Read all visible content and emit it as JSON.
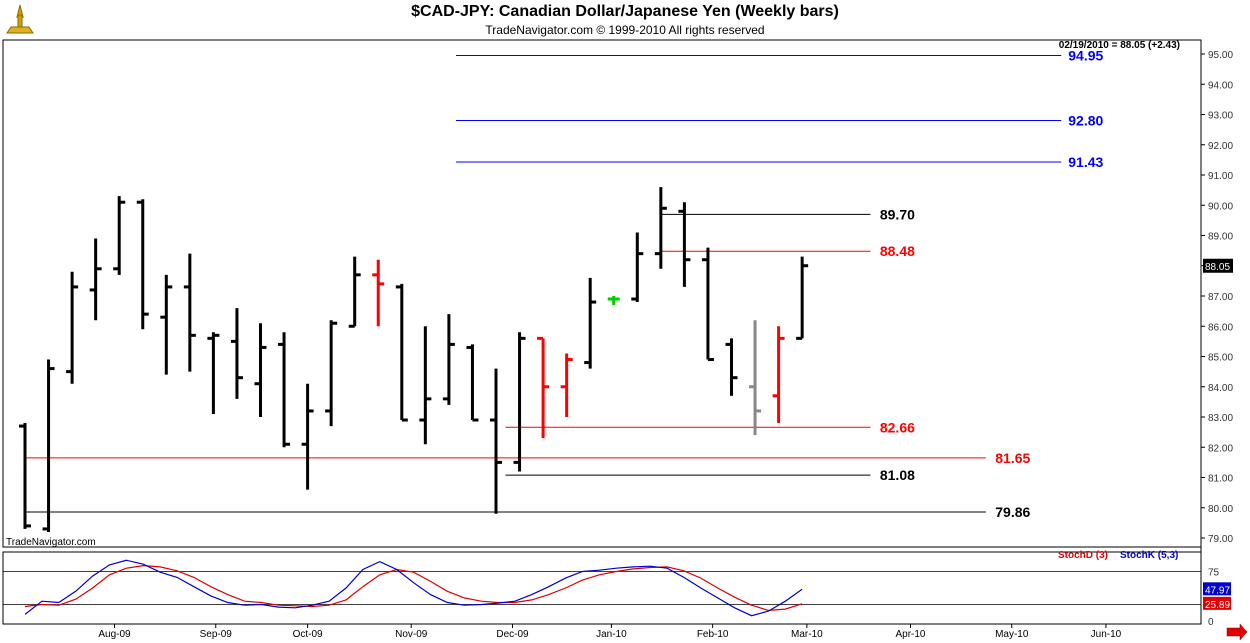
{
  "header": {
    "title": "$CAD-JPY:  Canadian Dollar/Japanese Yen  (Weekly bars)",
    "copyright": "TradeNavigator.com © 1999-2010 All rights reserved"
  },
  "info": {
    "last_quote": "02/19/2010 = 88.05 (+2.43)",
    "watermark": "TradeNavigator.com",
    "price_tag": "88.05"
  },
  "colors": {
    "blue": "#0000ff",
    "red": "#ff0000",
    "black": "#000000",
    "green": "#00cc00",
    "gray": "#888888",
    "stochD": "#e00000",
    "stochK": "#0000cc"
  },
  "chart_data": {
    "type": "ohlc",
    "yaxis": {
      "min": 79.0,
      "max": 95.0,
      "ticks": [
        "79.00",
        "80.00",
        "81.00",
        "82.00",
        "83.00",
        "84.00",
        "85.00",
        "86.00",
        "87.00",
        "88.00",
        "89.00",
        "90.00",
        "91.00",
        "92.00",
        "93.00",
        "94.00",
        "95.00"
      ]
    },
    "xaxis": {
      "labels": [
        {
          "label": "Aug-09",
          "week": 3.8
        },
        {
          "label": "Sep-09",
          "week": 8.1
        },
        {
          "label": "Oct-09",
          "week": 12.0
        },
        {
          "label": "Nov-09",
          "week": 16.4
        },
        {
          "label": "Dec-09",
          "week": 20.7
        },
        {
          "label": "Jan-10",
          "week": 24.9
        },
        {
          "label": "Feb-10",
          "week": 29.2
        },
        {
          "label": "Mar-10",
          "week": 33.2
        },
        {
          "label": "Apr-10",
          "week": 37.6
        },
        {
          "label": "May-10",
          "week": 41.9
        },
        {
          "label": "Jun-10",
          "week": 45.9
        }
      ]
    },
    "bars": [
      {
        "o": 82.7,
        "h": 82.8,
        "l": 79.3,
        "c": 79.4,
        "color": "black"
      },
      {
        "o": 79.3,
        "h": 84.9,
        "l": 79.2,
        "c": 84.6,
        "color": "black"
      },
      {
        "o": 84.5,
        "h": 87.8,
        "l": 84.1,
        "c": 87.3,
        "color": "black"
      },
      {
        "o": 87.2,
        "h": 88.9,
        "l": 86.2,
        "c": 87.9,
        "color": "black"
      },
      {
        "o": 87.9,
        "h": 90.3,
        "l": 87.7,
        "c": 90.1,
        "color": "black"
      },
      {
        "o": 90.1,
        "h": 90.2,
        "l": 85.9,
        "c": 86.4,
        "color": "black"
      },
      {
        "o": 86.3,
        "h": 87.7,
        "l": 84.4,
        "c": 87.3,
        "color": "black"
      },
      {
        "o": 87.3,
        "h": 88.4,
        "l": 84.5,
        "c": 85.7,
        "color": "black"
      },
      {
        "o": 85.6,
        "h": 85.8,
        "l": 83.1,
        "c": 85.7,
        "color": "black"
      },
      {
        "o": 85.5,
        "h": 86.6,
        "l": 83.6,
        "c": 84.3,
        "color": "black"
      },
      {
        "o": 84.1,
        "h": 86.1,
        "l": 83.0,
        "c": 85.3,
        "color": "black"
      },
      {
        "o": 85.4,
        "h": 85.8,
        "l": 82.0,
        "c": 82.1,
        "color": "black"
      },
      {
        "o": 82.1,
        "h": 84.1,
        "l": 80.6,
        "c": 83.2,
        "color": "black"
      },
      {
        "o": 83.2,
        "h": 86.2,
        "l": 82.7,
        "c": 86.1,
        "color": "black"
      },
      {
        "o": 86.0,
        "h": 88.3,
        "l": 86.0,
        "c": 87.7,
        "color": "black"
      },
      {
        "o": 87.7,
        "h": 88.2,
        "l": 86.0,
        "c": 87.4,
        "color": "red"
      },
      {
        "o": 87.3,
        "h": 87.4,
        "l": 82.9,
        "c": 82.9,
        "color": "black"
      },
      {
        "o": 82.9,
        "h": 86.0,
        "l": 82.1,
        "c": 83.6,
        "color": "black"
      },
      {
        "o": 83.6,
        "h": 86.4,
        "l": 83.4,
        "c": 85.4,
        "color": "black"
      },
      {
        "o": 85.3,
        "h": 85.4,
        "l": 82.9,
        "c": 82.9,
        "color": "black"
      },
      {
        "o": 82.9,
        "h": 84.6,
        "l": 79.8,
        "c": 81.5,
        "color": "black"
      },
      {
        "o": 81.5,
        "h": 85.8,
        "l": 81.2,
        "c": 85.6,
        "color": "black"
      },
      {
        "o": 85.6,
        "h": 85.6,
        "l": 82.3,
        "c": 84.0,
        "color": "red"
      },
      {
        "o": 84.0,
        "h": 85.1,
        "l": 83.0,
        "c": 84.9,
        "color": "red"
      },
      {
        "o": 84.8,
        "h": 87.6,
        "l": 84.6,
        "c": 86.8,
        "color": "black"
      },
      {
        "o": 86.9,
        "h": 87.0,
        "l": 86.7,
        "c": 86.9,
        "color": "green"
      },
      {
        "o": 86.9,
        "h": 89.1,
        "l": 86.8,
        "c": 88.4,
        "color": "black"
      },
      {
        "o": 88.4,
        "h": 90.6,
        "l": 87.9,
        "c": 89.9,
        "color": "black"
      },
      {
        "o": 89.8,
        "h": 90.1,
        "l": 87.3,
        "c": 88.2,
        "color": "black"
      },
      {
        "o": 88.2,
        "h": 88.6,
        "l": 84.9,
        "c": 84.9,
        "color": "black"
      },
      {
        "o": 85.4,
        "h": 85.6,
        "l": 83.7,
        "c": 84.3,
        "color": "black"
      },
      {
        "o": 84.0,
        "h": 86.2,
        "l": 82.4,
        "c": 83.2,
        "color": "gray"
      },
      {
        "o": 83.7,
        "h": 86.0,
        "l": 82.8,
        "c": 85.6,
        "color": "red"
      },
      {
        "o": 85.6,
        "h": 88.3,
        "l": 85.6,
        "c": 88.0,
        "color": "black"
      }
    ],
    "levels": [
      {
        "value": 94.95,
        "label": "94.95",
        "color": "blue",
        "from_week": 18.3,
        "to_week": 44.0,
        "label_week": 44.3
      },
      {
        "value": 92.8,
        "label": "92.80",
        "color": "blue",
        "from_week": 18.3,
        "to_week": 44.0,
        "label_week": 44.3
      },
      {
        "value": 91.43,
        "label": "91.43",
        "color": "blue",
        "from_week": 18.3,
        "to_week": 44.0,
        "label_week": 44.3
      },
      {
        "value": 89.7,
        "label": "89.70",
        "color": "black",
        "from_week": 27.0,
        "to_week": 35.9,
        "label_week": 36.3
      },
      {
        "value": 88.48,
        "label": "88.48",
        "color": "red",
        "from_week": 27.0,
        "to_week": 35.9,
        "label_week": 36.3
      },
      {
        "value": 82.66,
        "label": "82.66",
        "color": "red",
        "from_week": 20.4,
        "to_week": 35.9,
        "label_week": 36.3
      },
      {
        "value": 81.65,
        "label": "81.65",
        "color": "red",
        "from_week": 0.0,
        "to_week": 40.8,
        "label_week": 41.2
      },
      {
        "value": 81.08,
        "label": "81.08",
        "color": "black",
        "from_week": 20.4,
        "to_week": 35.9,
        "label_week": 36.3
      },
      {
        "value": 79.86,
        "label": "79.86",
        "color": "black",
        "from_week": 0.0,
        "to_week": 40.8,
        "label_week": 41.2
      }
    ],
    "stochastic": {
      "ymin": 0,
      "ymax": 100,
      "lines": [
        75,
        25
      ],
      "ticks": [
        "75",
        "25",
        "0"
      ],
      "labels": {
        "d": "StochD (3)",
        "k": "StochK (5,3)"
      },
      "k_value": "47.97",
      "d_value": "25.89",
      "k": [
        10,
        30,
        28,
        45,
        68,
        85,
        92,
        86,
        74,
        66,
        52,
        38,
        28,
        24,
        25,
        21,
        20,
        24,
        30,
        50,
        78,
        90,
        78,
        58,
        40,
        28,
        24,
        25,
        27,
        30,
        40,
        52,
        65,
        75,
        77,
        80,
        82,
        83,
        80,
        66,
        50,
        35,
        20,
        8,
        15,
        30,
        48
      ],
      "d": [
        22,
        25,
        24,
        33,
        50,
        70,
        80,
        84,
        82,
        76,
        66,
        52,
        40,
        30,
        28,
        24,
        23,
        22,
        24,
        32,
        52,
        70,
        78,
        74,
        60,
        45,
        35,
        30,
        28,
        28,
        32,
        40,
        50,
        62,
        70,
        75,
        79,
        81,
        82,
        76,
        65,
        50,
        36,
        24,
        16,
        18,
        26
      ]
    }
  }
}
